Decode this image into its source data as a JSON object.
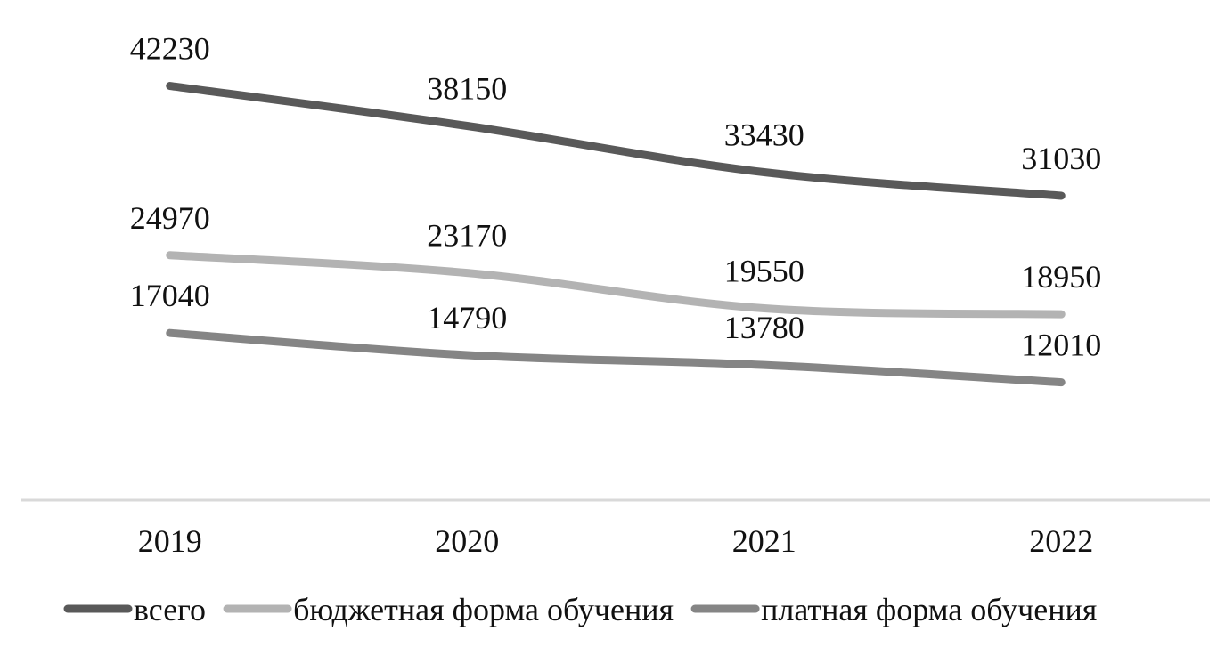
{
  "chart_data": {
    "type": "line",
    "categories": [
      "2019",
      "2020",
      "2021",
      "2022"
    ],
    "series": [
      {
        "name": "всего",
        "color": "#595959",
        "values": [
          42230,
          38150,
          33430,
          31030
        ]
      },
      {
        "name": "бюджетная форма обучения",
        "color": "#b3b3b3",
        "values": [
          24970,
          23170,
          19550,
          18950
        ]
      },
      {
        "name": "платная форма обучения",
        "color": "#858585",
        "values": [
          17040,
          14790,
          13780,
          12010
        ]
      }
    ],
    "ylim": [
      0,
      45000
    ],
    "grid": false,
    "legend": "bottom"
  }
}
